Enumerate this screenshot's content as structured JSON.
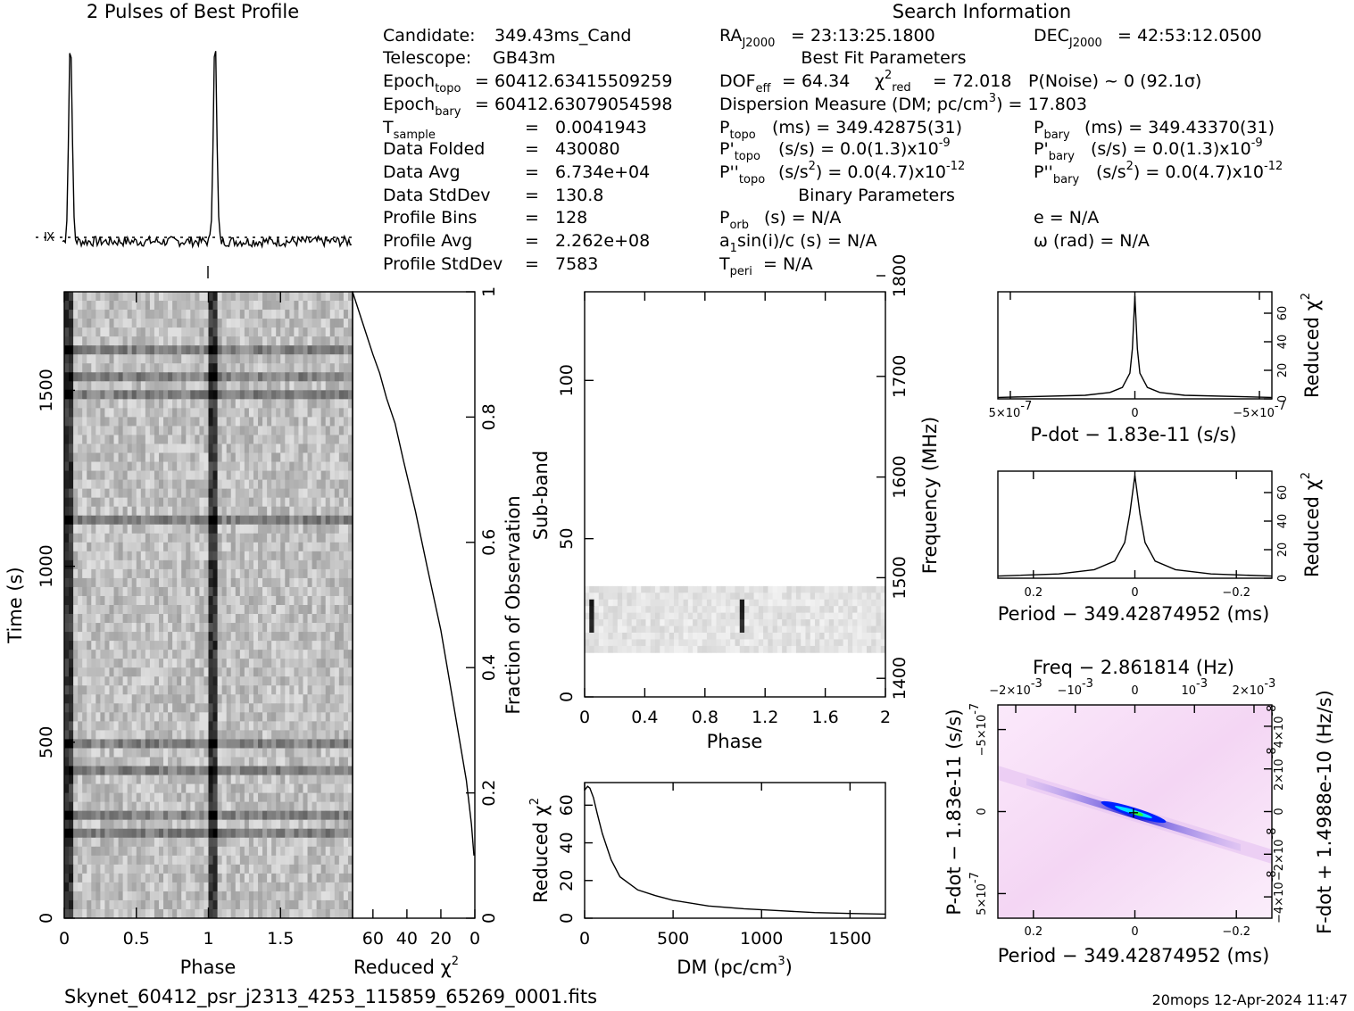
{
  "header": {
    "profile_title": "2 Pulses of Best Profile",
    "search_title": "Search Information",
    "best_fit_title": "Best Fit Parameters",
    "binary_title": "Binary Parameters"
  },
  "info_left": [
    {
      "label": "Candidate:",
      "sub": "",
      "value": "349.43ms_Cand"
    },
    {
      "label": "Telescope:",
      "sub": "",
      "value": "GB43m"
    },
    {
      "label": "Epoch",
      "sub": "topo",
      "value": "= 60412.63415509259"
    },
    {
      "label": "Epoch",
      "sub": "bary",
      "value": "= 60412.63079054598"
    },
    {
      "label": "T",
      "sub": "sample",
      "value": "0.0041943"
    },
    {
      "label": "Data Folded",
      "sub": "",
      "value": "430080"
    },
    {
      "label": "Data Avg",
      "sub": "",
      "value": "6.734e+04"
    },
    {
      "label": "Data StdDev",
      "sub": "",
      "value": "130.8"
    },
    {
      "label": "Profile Bins",
      "sub": "",
      "value": "128"
    },
    {
      "label": "Profile Avg",
      "sub": "",
      "value": "2.262e+08"
    },
    {
      "label": "Profile StdDev",
      "sub": "",
      "value": "7583"
    }
  ],
  "equals": "=",
  "info_mid": {
    "ra": "= 23:13:25.1800",
    "dec": "= 42:53:12.0500",
    "dof": "= 64.34",
    "chi2": "= 72.018",
    "pnoise": "P(Noise) ~ 0    (92.1σ)",
    "dm": "Dispersion Measure (DM; pc/cm",
    "dm_value": ") = 17.803",
    "ptopo": "(ms) =  349.42875(31)",
    "pbary": "(ms) =  349.43370(31)",
    "pdtopo": "(s/s) = 0.0(1.3)x10",
    "pdtopo_exp": "-9",
    "pdbary": "(s/s) = 0.0(1.3)x10",
    "pdbary_exp": "-9",
    "pddtopo": "(s/s",
    "pddtopo_rest": ") = 0.0(4.7)x10",
    "pddtopo_exp": "-12",
    "pddbary": "(s/s",
    "pddbary_rest": ") = 0.0(4.7)x10",
    "pddbary_exp": "-12",
    "porb": "(s) = N/A",
    "asini": "a",
    "asini_rest": "sin(i)/c (s) = N/A",
    "tperi": "= N/A",
    "ecc": "e = N/A",
    "omega": "ω (rad) = N/A"
  },
  "footer": {
    "filename": "Skynet_60412_psr_j2313_4253_115859_65269_0001.fits",
    "stamp": "20mops 12-Apr-2024 11:47"
  },
  "chart_data": [
    {
      "id": "profile",
      "type": "line",
      "title": "2 Pulses of Best Profile",
      "x": [
        0,
        0.03,
        0.045,
        0.055,
        0.065,
        0.08,
        0.2,
        0.4,
        0.6,
        0.8,
        0.95,
        1.03,
        1.045,
        1.055,
        1.065,
        1.08,
        1.2,
        1.4,
        1.6,
        1.8,
        2.0
      ],
      "y": [
        0.02,
        0.03,
        0.5,
        1.0,
        0.5,
        0.03,
        0.0,
        0.02,
        0.0,
        0.01,
        0.02,
        0.03,
        0.5,
        1.0,
        0.5,
        0.03,
        0.0,
        0.02,
        0.0,
        0.01,
        0.02
      ]
    },
    {
      "id": "time_phase",
      "type": "heatmap",
      "xlabel": "Phase",
      "ylabel": "Time (s)",
      "xlim": [
        0,
        2
      ],
      "ylim": [
        0,
        1780
      ],
      "xticks": [
        "0",
        "0.5",
        "1",
        "1.5"
      ],
      "xtick_values": [
        0,
        0.5,
        1,
        1.5
      ],
      "yticks": [
        "0",
        "500",
        "1000",
        "1500"
      ],
      "ytick_values": [
        0,
        500,
        1000,
        1500
      ],
      "pulse_phases": [
        0.03,
        1.03
      ]
    },
    {
      "id": "chi_vs_time",
      "type": "line",
      "xlabel": "Reduced χ",
      "ylabel": "Fraction of Observation",
      "xlim": [
        72,
        0
      ],
      "ylim": [
        0,
        1
      ],
      "xticks": [
        "60",
        "40",
        "20",
        "0"
      ],
      "xtick_values": [
        60,
        40,
        20,
        0
      ],
      "yticks": [
        "0",
        "0.2",
        "0.4",
        "0.6",
        "0.8",
        "1"
      ],
      "ytick_values": [
        0,
        0.2,
        0.4,
        0.6,
        0.8,
        1
      ],
      "x": [
        0.5,
        2,
        5,
        10,
        15,
        20,
        28,
        35,
        42,
        47,
        52,
        56,
        60,
        66,
        72
      ],
      "y": [
        0.1,
        0.15,
        0.22,
        0.3,
        0.38,
        0.46,
        0.56,
        0.65,
        0.73,
        0.79,
        0.83,
        0.87,
        0.9,
        0.95,
        1.0
      ]
    },
    {
      "id": "subband_phase",
      "type": "heatmap",
      "xlabel": "Phase",
      "ylabel": "Sub-band",
      "y2label": "Frequency (MHz)",
      "xlim": [
        0,
        2
      ],
      "ylim": [
        0,
        128
      ],
      "y2lim": [
        1300,
        1800
      ],
      "xticks": [
        "0",
        "0.4",
        "0.8",
        "1.2",
        "1.6",
        "2"
      ],
      "xtick_values": [
        0,
        0.4,
        0.8,
        1.2,
        1.6,
        2
      ],
      "yticks": [
        "0",
        "50",
        "100"
      ],
      "ytick_values": [
        0,
        50,
        100
      ],
      "y2ticks": [
        "1400",
        "1500",
        "1600",
        "1700",
        "1800"
      ],
      "y2tick_values": [
        1400,
        1500,
        1600,
        1700,
        1800
      ],
      "band_rows": [
        14,
        35
      ],
      "pulse_phases": [
        0.05,
        1.05
      ]
    },
    {
      "id": "dm_curve",
      "type": "line",
      "xlabel": "DM (pc/cm",
      "ylabel": "Reduced χ",
      "xlim": [
        0,
        1700
      ],
      "ylim": [
        0,
        72
      ],
      "xticks": [
        "0",
        "500",
        "1000",
        "1500"
      ],
      "xtick_values": [
        0,
        500,
        1000,
        1500
      ],
      "yticks": [
        "0",
        "20",
        "40",
        "60"
      ],
      "ytick_values": [
        0,
        20,
        40,
        60
      ],
      "x": [
        0,
        17,
        30,
        50,
        70,
        100,
        150,
        200,
        300,
        400,
        500,
        700,
        900,
        1100,
        1300,
        1500,
        1700
      ],
      "y": [
        68,
        70,
        69,
        64,
        56,
        45,
        31,
        22,
        15,
        12,
        9.5,
        6.5,
        5,
        4,
        3,
        2.5,
        2.2
      ]
    },
    {
      "id": "pdot_curve",
      "type": "line",
      "xlabel": "P-dot − 1.83e-11 (s/s)",
      "ylabel": "Reduced χ",
      "xlim": [
        5.5e-07,
        -5.5e-07
      ],
      "ylim": [
        0,
        75
      ],
      "xticks": [
        "5×10",
        "0",
        "−5×10"
      ],
      "xtick_values": [
        5e-07,
        0,
        -5e-07
      ],
      "xtick_exp": "-7",
      "yticks": [
        "0",
        "20",
        "40",
        "60"
      ],
      "ytick_values": [
        0,
        20,
        40,
        60
      ],
      "x": [
        5.5e-07,
        2e-07,
        1e-07,
        5e-08,
        2e-08,
        1e-08,
        0,
        -1e-08,
        -2e-08,
        -5e-08,
        -1e-07,
        -2e-07,
        -5.5e-07
      ],
      "y": [
        1,
        2.5,
        4.5,
        8,
        18,
        35,
        72,
        35,
        18,
        8,
        4.5,
        2.5,
        1
      ]
    },
    {
      "id": "period_curve",
      "type": "line",
      "xlabel": "Period − 349.42874952 (ms)",
      "ylabel": "Reduced χ",
      "xlim": [
        0.27,
        -0.27
      ],
      "ylim": [
        0,
        75
      ],
      "xticks": [
        "0.2",
        "0",
        "−0.2"
      ],
      "xtick_values": [
        0.2,
        0,
        -0.2
      ],
      "yticks": [
        "0",
        "20",
        "40",
        "60"
      ],
      "ytick_values": [
        0,
        20,
        40,
        60
      ],
      "x": [
        0.27,
        0.15,
        0.08,
        0.04,
        0.02,
        0.01,
        0,
        -0.01,
        -0.02,
        -0.04,
        -0.08,
        -0.15,
        -0.27
      ],
      "y": [
        1.5,
        3,
        6,
        12,
        25,
        45,
        72,
        45,
        25,
        12,
        6,
        3,
        1.5
      ]
    },
    {
      "id": "p_pdot_plane",
      "type": "heatmap",
      "title": "Freq − 2.861814 (Hz)",
      "xlabel": "Period − 349.42874952 (ms)",
      "ylabel": "P-dot − 1.83e-11 (s/s)",
      "y2label": "F-dot + 1.4988e-10 (Hz/s)",
      "xticks": [
        "0.2",
        "0",
        "−0.2"
      ],
      "xtick_values": [
        0.2,
        0,
        -0.2
      ],
      "x2ticks": [
        "−2×10",
        "−10",
        "0",
        "10",
        "2×10"
      ],
      "x2tick_values": [
        -0.002,
        -0.001,
        0,
        0.001,
        0.002
      ],
      "x2tick_exp": "-3",
      "yticks": [
        "−5×10",
        "0",
        "5×10"
      ],
      "ytick_values": [
        -5e-07,
        0,
        5e-07
      ],
      "ytick_exp": "-7",
      "y2ticks": [
        "4×10",
        "2×10",
        "0",
        "−2×10",
        "−4×10"
      ],
      "y2tick_values": [
        4e-08,
        2e-08,
        0,
        -2e-08,
        -4e-08
      ],
      "y2tick_exp": "-8",
      "best": [
        0,
        0
      ]
    }
  ]
}
